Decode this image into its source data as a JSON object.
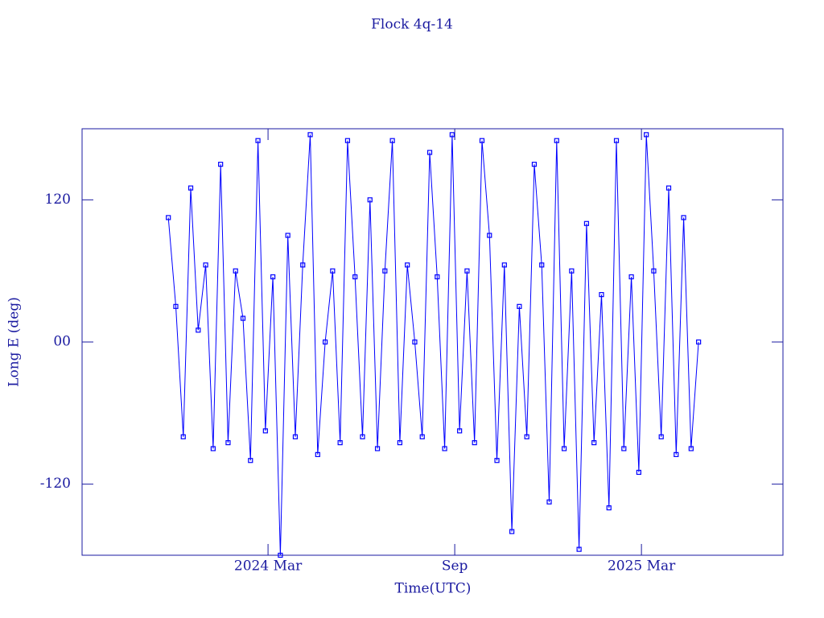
{
  "chart_data": {
    "type": "line",
    "title": "Flock 4q-14",
    "x_label": "Time(UTC)",
    "y_label": "Long E (deg)",
    "xlim": [
      2023.669,
      2025.546
    ],
    "xticks": [
      {
        "value": 2024.167,
        "label": "2024 Mar"
      },
      {
        "value": 2024.667,
        "label": "Sep"
      },
      {
        "value": 2025.167,
        "label": "2025 Mar"
      }
    ],
    "ylim": [
      -180,
      180
    ],
    "yticks": [
      -120,
      {
        "value": 0,
        "label": "00"
      },
      120
    ],
    "grid": false,
    "x": [
      2023.9,
      2023.92,
      2023.94,
      2023.96,
      2023.98,
      2024.0,
      2024.02,
      2024.04,
      2024.06,
      2024.08,
      2024.1,
      2024.12,
      2024.14,
      2024.16,
      2024.18,
      2024.2,
      2024.22,
      2024.24,
      2024.26,
      2024.28,
      2024.3,
      2024.32,
      2024.34,
      2024.36,
      2024.38,
      2024.4,
      2024.42,
      2024.44,
      2024.46,
      2024.48,
      2024.5,
      2024.52,
      2024.54,
      2024.56,
      2024.58,
      2024.6,
      2024.62,
      2024.64,
      2024.66,
      2024.68,
      2024.7,
      2024.72,
      2024.74,
      2024.76,
      2024.78,
      2024.8,
      2024.82,
      2024.84,
      2024.86,
      2024.88,
      2024.9,
      2024.92,
      2024.94,
      2024.96,
      2024.98,
      2025.0,
      2025.02,
      2025.04,
      2025.06,
      2025.08,
      2025.1,
      2025.12,
      2025.14,
      2025.16,
      2025.18,
      2025.2,
      2025.22,
      2025.24,
      2025.26,
      2025.28,
      2025.3,
      2025.32
    ],
    "series": [
      {
        "color": "#0000ff",
        "values": [
          105,
          30,
          -80,
          130,
          10,
          65,
          -90,
          150,
          -85,
          60,
          20,
          -100,
          170,
          -75,
          55,
          -180,
          90,
          -80,
          65,
          175,
          -95,
          0,
          60,
          -85,
          170,
          55,
          -80,
          120,
          -90,
          60,
          170,
          -85,
          65,
          0,
          -80,
          160,
          55,
          -90,
          175,
          -75,
          60,
          -85,
          170,
          90,
          -100,
          65,
          -160,
          30,
          -80,
          150,
          65,
          -135,
          170,
          -90,
          60,
          -175,
          100,
          -85,
          40,
          -140,
          170,
          -90,
          55,
          -110,
          175,
          60,
          -80,
          130,
          -95,
          105,
          -90,
          0
        ]
      }
    ]
  }
}
